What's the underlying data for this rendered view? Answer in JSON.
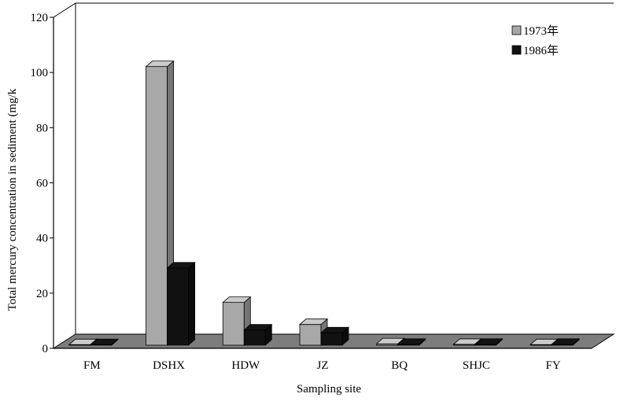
{
  "chart_data": {
    "type": "bar",
    "style": "3d-clustered",
    "categories": [
      "FM",
      "DSHX",
      "HDW",
      "JZ",
      "BQ",
      "SHJC",
      "FY"
    ],
    "series": [
      {
        "name": "1973年",
        "values": [
          0.2,
          101,
          15.5,
          7.5,
          0.5,
          0.3,
          0.2
        ],
        "color": "#a8a8a8"
      },
      {
        "name": "1986年",
        "values": [
          0.2,
          28,
          5.5,
          4.5,
          0.3,
          0.3,
          0.3
        ],
        "color": "#111111"
      }
    ],
    "xlabel": "Sampling site",
    "ylabel": "Total mercury concentration in sediment (mg/k",
    "ylim": [
      0,
      120
    ],
    "yticks": [
      0,
      20,
      40,
      60,
      80,
      100,
      120
    ],
    "grid": false,
    "legend_position": "top-right"
  }
}
